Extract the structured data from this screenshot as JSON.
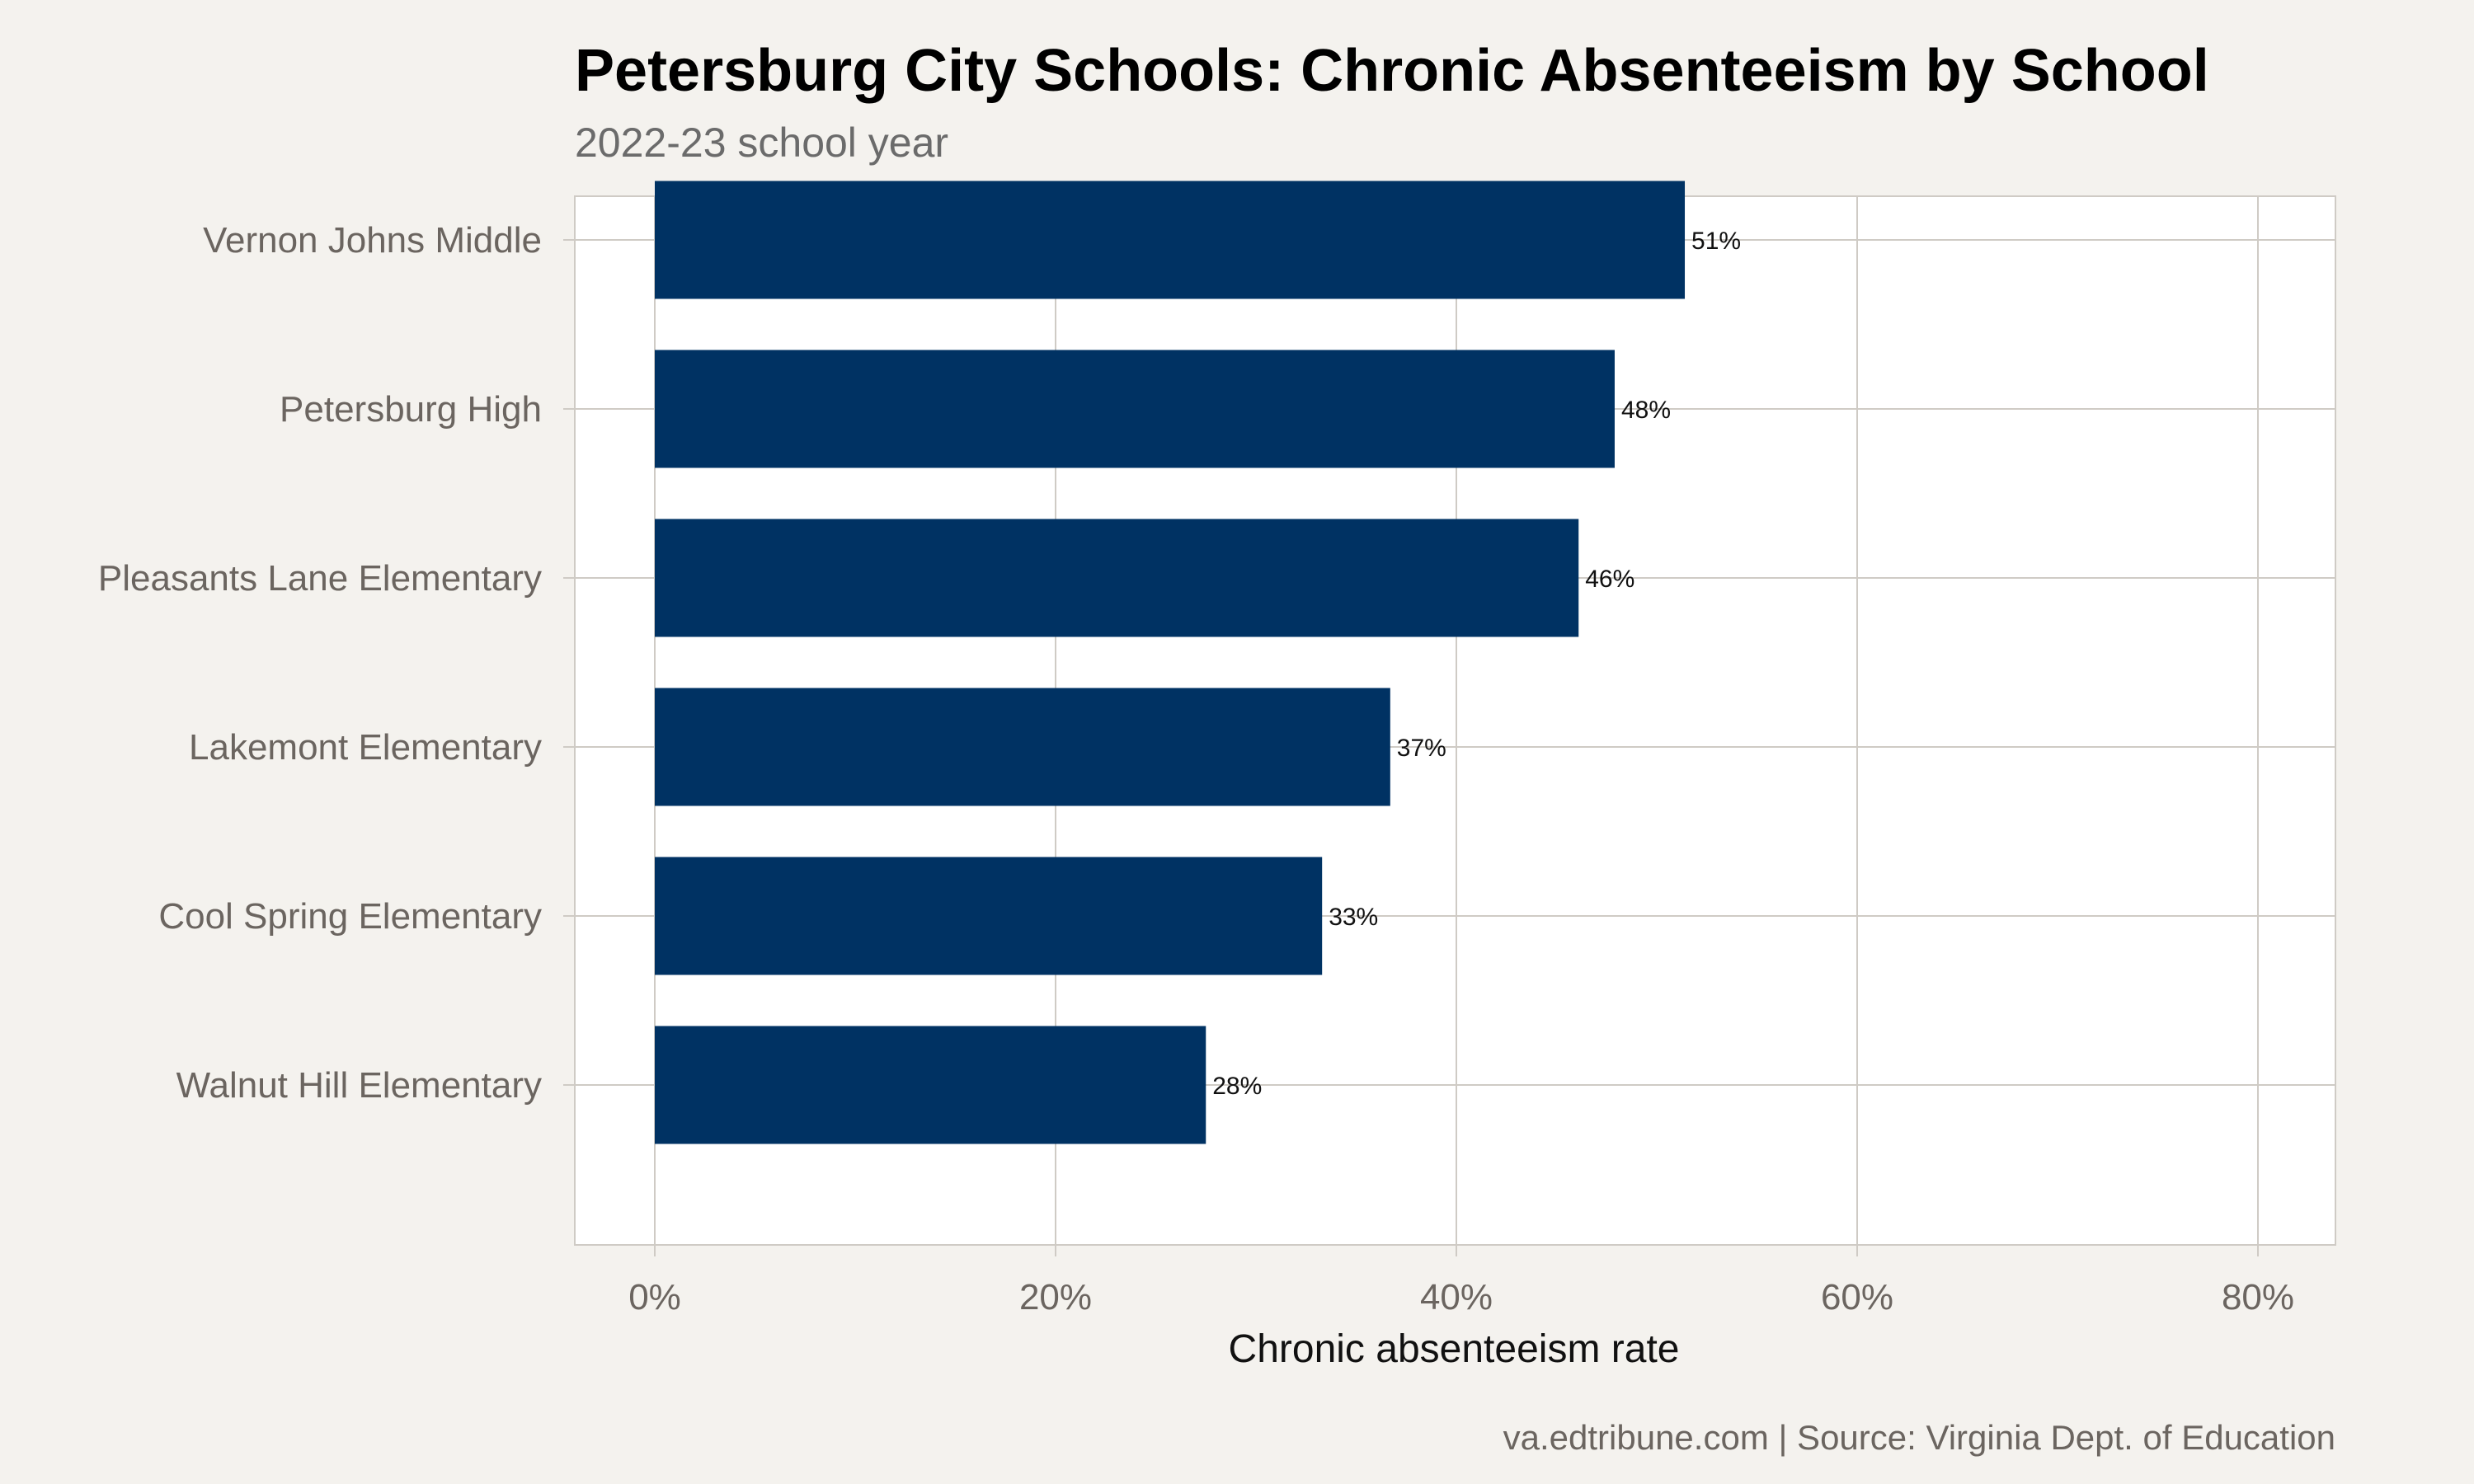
{
  "chart_data": {
    "type": "bar",
    "orientation": "horizontal",
    "title": "Petersburg City Schools: Chronic Absenteeism by School",
    "subtitle": "2022-23 school year",
    "xlabel": "Chronic absenteeism rate",
    "ylabel": "",
    "caption": "va.edtribune.com | Source: Virginia Dept. of Education",
    "categories": [
      "Vernon Johns Middle",
      "Petersburg High",
      "Pleasants Lane Elementary",
      "Lakemont Elementary",
      "Cool Spring Elementary",
      "Walnut Hill Elementary"
    ],
    "values": [
      51.4,
      47.9,
      46.1,
      36.7,
      33.3,
      27.5
    ],
    "data_labels": [
      "51%",
      "48%",
      "46%",
      "37%",
      "33%",
      "28%"
    ],
    "xlim": [
      0,
      80
    ],
    "xticks": [
      0,
      20,
      40,
      60,
      80
    ],
    "xtick_labels": [
      "0%",
      "20%",
      "40%",
      "60%",
      "80%"
    ],
    "grid": true,
    "legend": "none",
    "colors": {
      "bar": "#003263",
      "background": "#f4f2ee",
      "panel": "#ffffff",
      "grid": "#cfcbc5"
    }
  }
}
